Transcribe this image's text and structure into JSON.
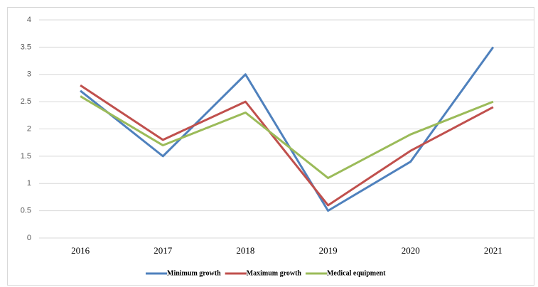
{
  "chart_data": {
    "type": "line",
    "categories": [
      "2016",
      "2017",
      "2018",
      "2019",
      "2020",
      "2021"
    ],
    "series": [
      {
        "name": "Minimum growth",
        "color": "#4f81bd",
        "values": [
          2.7,
          1.5,
          3.0,
          0.5,
          1.4,
          3.5
        ]
      },
      {
        "name": "Maximum growth",
        "color": "#c0504d",
        "values": [
          2.8,
          1.8,
          2.5,
          0.6,
          1.6,
          2.4
        ]
      },
      {
        "name": "Medical equipment",
        "color": "#9bbb59",
        "values": [
          2.6,
          1.7,
          2.3,
          1.1,
          1.9,
          2.5
        ]
      }
    ],
    "ylim": [
      0,
      4
    ],
    "yticks": [
      0,
      0.5,
      1,
      1.5,
      2,
      2.5,
      3,
      3.5,
      4
    ],
    "grid": true,
    "legend": "bottom"
  }
}
